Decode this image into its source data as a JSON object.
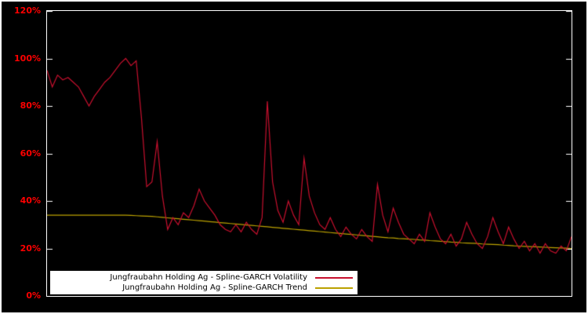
{
  "figure": {
    "background": "#000000",
    "frame_color": "#ffffff"
  },
  "y_axis": {
    "color": "#ff0000",
    "ticks": [
      {
        "value": 120,
        "label": "120%"
      },
      {
        "value": 100,
        "label": "100%"
      },
      {
        "value": 80,
        "label": "80%"
      },
      {
        "value": 60,
        "label": "60%"
      },
      {
        "value": 40,
        "label": "40%"
      },
      {
        "value": 20,
        "label": "20%"
      },
      {
        "value": 0,
        "label": "0%"
      }
    ]
  },
  "legend": {
    "items": [
      {
        "label": "Jungfraubahn Holding Ag - Spline-GARCH Volatility",
        "color": "#c8102e"
      },
      {
        "label": "Jungfraubahn Holding Ag - Spline-GARCH Trend",
        "color": "#bba100"
      }
    ]
  },
  "chart_data": {
    "type": "line",
    "title": "",
    "xlabel": "",
    "ylabel": "",
    "ylim": [
      0,
      120
    ],
    "y_ticks": [
      0,
      20,
      40,
      60,
      80,
      100,
      120
    ],
    "grid": false,
    "legend_position": "bottom-left-inside",
    "x_unit": "time (unlabeled axis, evenly spaced observations 0..100)",
    "series": [
      {
        "name": "Jungfraubahn Holding Ag - Spline-GARCH Volatility",
        "color": "#c8102e",
        "values": [
          95,
          88,
          93,
          91,
          92,
          90,
          88,
          84,
          80,
          84,
          87,
          90,
          92,
          95,
          98,
          100,
          97,
          99,
          75,
          46,
          48,
          65,
          42,
          28,
          33,
          30,
          35,
          33,
          38,
          45,
          40,
          37,
          34,
          30,
          28,
          27,
          30,
          27,
          31,
          28,
          26,
          33,
          82,
          48,
          36,
          31,
          40,
          34,
          30,
          58,
          42,
          35,
          30,
          28,
          33,
          28,
          25,
          29,
          26,
          24,
          28,
          25,
          23,
          47,
          34,
          27,
          37,
          31,
          26,
          24,
          22,
          26,
          23,
          35,
          29,
          24,
          22,
          26,
          21,
          24,
          31,
          26,
          22,
          20,
          25,
          33,
          27,
          22,
          29,
          24,
          20,
          23,
          19,
          22,
          18,
          22,
          19,
          18,
          21,
          19,
          25
        ]
      },
      {
        "name": "Jungfraubahn Holding Ag - Spline-GARCH Trend",
        "color": "#bba100",
        "values": [
          34,
          34,
          34,
          34,
          34,
          34,
          34,
          34,
          34,
          34,
          34,
          34,
          34,
          34,
          34,
          34,
          33.9,
          33.8,
          33.7,
          33.6,
          33.5,
          33.3,
          33.1,
          32.9,
          32.7,
          32.5,
          32.3,
          32.1,
          31.9,
          31.7,
          31.5,
          31.3,
          31.1,
          30.9,
          30.7,
          30.5,
          30.3,
          30.1,
          29.9,
          29.7,
          29.5,
          29.3,
          29.1,
          28.9,
          28.7,
          28.5,
          28.3,
          28.1,
          27.9,
          27.7,
          27.5,
          27.3,
          27.1,
          26.9,
          26.7,
          26.5,
          26.3,
          26.1,
          25.9,
          25.7,
          25.5,
          25.3,
          25.1,
          24.9,
          24.7,
          24.5,
          24.4,
          24.2,
          24.1,
          23.9,
          23.8,
          23.6,
          23.5,
          23.3,
          23.2,
          23,
          22.9,
          22.7,
          22.6,
          22.4,
          22.3,
          22.2,
          22.1,
          21.9,
          21.8,
          21.7,
          21.6,
          21.4,
          21.3,
          21.1,
          21,
          20.9,
          20.8,
          20.7,
          20.6,
          20.5,
          20.4,
          20.3,
          20.2,
          20.1,
          20
        ]
      }
    ]
  }
}
